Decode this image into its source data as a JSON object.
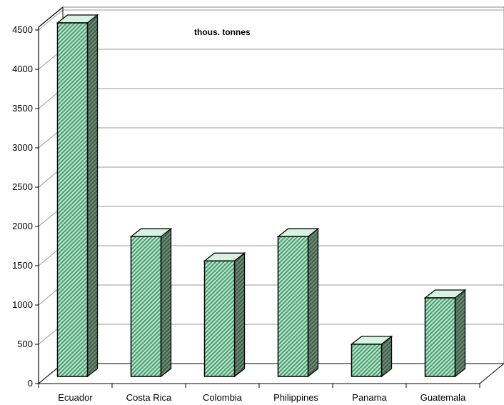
{
  "chart_data": {
    "type": "bar",
    "title": "thous. tonnes",
    "categories": [
      "Ecuador",
      "Costa Rica",
      "Colombia",
      "Philippines",
      "Panama",
      "Guatemala"
    ],
    "values": [
      4500,
      1780,
      1470,
      1780,
      410,
      1000
    ],
    "ylim": [
      0,
      4500
    ],
    "yticks": [
      0,
      500,
      1000,
      1500,
      2000,
      2500,
      3000,
      3500,
      4000,
      4500
    ],
    "grid": true,
    "colors": {
      "bar_front": "#8fd8b0",
      "bar_stripe": "#4d8a66",
      "bar_side": "#5e7d68",
      "bar_top": "#d8f2e2",
      "outline": "#000000",
      "grid": "#999999"
    }
  }
}
